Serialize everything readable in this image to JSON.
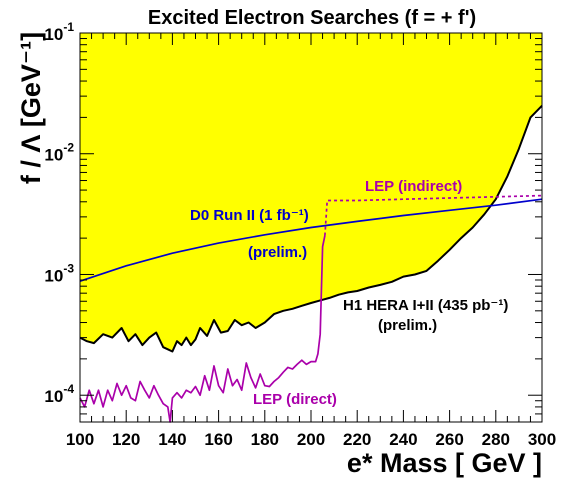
{
  "chart_data": {
    "type": "line",
    "title": "Excited Electron Searches (f = + f')",
    "xlabel": "e* Mass [ GeV ]",
    "ylabel": "f / Λ [GeV⁻¹]",
    "xlim": [
      100,
      300
    ],
    "ylim": [
      6e-05,
      0.1
    ],
    "yscale": "log",
    "grid": false,
    "x_ticks": [
      100,
      120,
      140,
      160,
      180,
      200,
      220,
      240,
      260,
      280,
      300
    ],
    "y_ticks": [
      {
        "value": 0.0001,
        "base": "10",
        "exp": "-4"
      },
      {
        "value": 0.001,
        "base": "10",
        "exp": "-3"
      },
      {
        "value": 0.01,
        "base": "10",
        "exp": "-2"
      },
      {
        "value": 0.1,
        "base": "10",
        "exp": "-1"
      }
    ],
    "series": [
      {
        "label": "H1 HERA I+II (435 pb⁻¹)",
        "sublabel": "(prelim.)",
        "color": "#000000",
        "fill": "#ffff00",
        "style": "solid",
        "x": [
          100,
          103,
          106,
          110,
          114,
          118,
          121,
          124,
          127,
          130,
          133,
          136,
          138,
          140,
          142,
          144,
          146,
          148,
          150,
          152,
          155,
          158,
          161,
          164,
          167,
          170,
          173,
          176,
          180,
          184,
          188,
          192,
          196,
          200,
          204,
          208,
          212,
          216,
          220,
          225,
          230,
          235,
          240,
          245,
          250,
          255,
          260,
          265,
          270,
          275,
          280,
          285,
          290,
          295,
          300
        ],
        "y": [
          0.0003,
          0.00028,
          0.00027,
          0.00032,
          0.0003,
          0.00036,
          0.00028,
          0.00032,
          0.00026,
          0.0003,
          0.00033,
          0.00025,
          0.00024,
          0.00023,
          0.00028,
          0.00026,
          0.0003,
          0.00026,
          0.00029,
          0.00036,
          0.00031,
          0.00042,
          0.00033,
          0.00034,
          0.00042,
          0.00038,
          0.0004,
          0.00036,
          0.0004,
          0.00047,
          0.0005,
          0.00052,
          0.00055,
          0.00058,
          0.00061,
          0.00064,
          0.00068,
          0.00071,
          0.00073,
          0.00078,
          0.00082,
          0.00087,
          0.00096,
          0.001,
          0.00107,
          0.0013,
          0.0016,
          0.002,
          0.00245,
          0.00315,
          0.0042,
          0.0065,
          0.011,
          0.02,
          0.025
        ]
      },
      {
        "label": "D0 Run II (1 fb⁻¹)",
        "sublabel": "(prelim.)",
        "color": "#0000cc",
        "style": "solid",
        "x": [
          100,
          120,
          140,
          160,
          180,
          200,
          220,
          240,
          260,
          280,
          300
        ],
        "y": [
          0.00088,
          0.00118,
          0.0015,
          0.00182,
          0.00213,
          0.00245,
          0.00275,
          0.00308,
          0.0034,
          0.00375,
          0.0042
        ]
      },
      {
        "label": "LEP (direct)",
        "color": "#aa00aa",
        "style": "solid",
        "x": [
          100,
          102,
          104,
          106,
          108,
          110,
          112,
          114,
          116,
          118,
          120,
          122,
          124,
          126,
          128,
          130,
          132,
          134,
          136,
          138,
          139,
          140,
          142,
          144,
          146,
          148,
          150,
          152,
          154,
          156,
          158,
          160,
          162,
          164,
          166,
          168,
          170,
          172,
          174,
          176,
          178,
          180,
          182,
          184,
          186,
          188,
          190,
          192,
          194,
          196,
          198,
          200,
          202,
          203,
          204,
          205,
          206
        ],
        "y": [
          9.5e-05,
          8e-05,
          0.00011,
          8.5e-05,
          0.00011,
          8e-05,
          0.00011,
          9e-05,
          0.000125,
          0.0001,
          0.00012,
          9.5e-05,
          9e-05,
          0.00013,
          0.00011,
          9.5e-05,
          0.00012,
          0.0001,
          8.5e-05,
          8e-05,
          6e-05,
          9.5e-05,
          0.000105,
          9.5e-05,
          0.00011,
          0.000105,
          0.000118,
          0.0001,
          0.000145,
          0.00011,
          0.000175,
          0.00012,
          0.000105,
          0.000165,
          0.00012,
          0.000135,
          0.00011,
          0.000185,
          0.00014,
          0.000115,
          0.00015,
          0.00012,
          0.000118,
          0.00013,
          0.00014,
          0.000155,
          0.00017,
          0.000165,
          0.00018,
          0.000195,
          0.00018,
          0.00019,
          0.00019,
          0.00022,
          0.00032,
          0.0017,
          0.0021
        ]
      },
      {
        "label": "LEP (indirect)",
        "color": "#aa00aa",
        "style": "dashed",
        "x": [
          206,
          207,
          210,
          220,
          240,
          260,
          280,
          300
        ],
        "y": [
          0.0021,
          0.0041,
          0.0041,
          0.0041,
          0.0042,
          0.0043,
          0.0044,
          0.0045
        ]
      }
    ],
    "annotations": [
      {
        "text": "LEP (indirect)",
        "color": "#aa00aa"
      },
      {
        "text": "D0 Run II (1 fb⁻¹)",
        "color": "#0000cc"
      },
      {
        "text": "(prelim.)",
        "color": "#0000cc"
      },
      {
        "text": "H1 HERA I+II (435 pb⁻¹)",
        "color": "#000000"
      },
      {
        "text": "(prelim.)",
        "color": "#000000"
      },
      {
        "text": "LEP (direct)",
        "color": "#aa00aa"
      }
    ]
  }
}
